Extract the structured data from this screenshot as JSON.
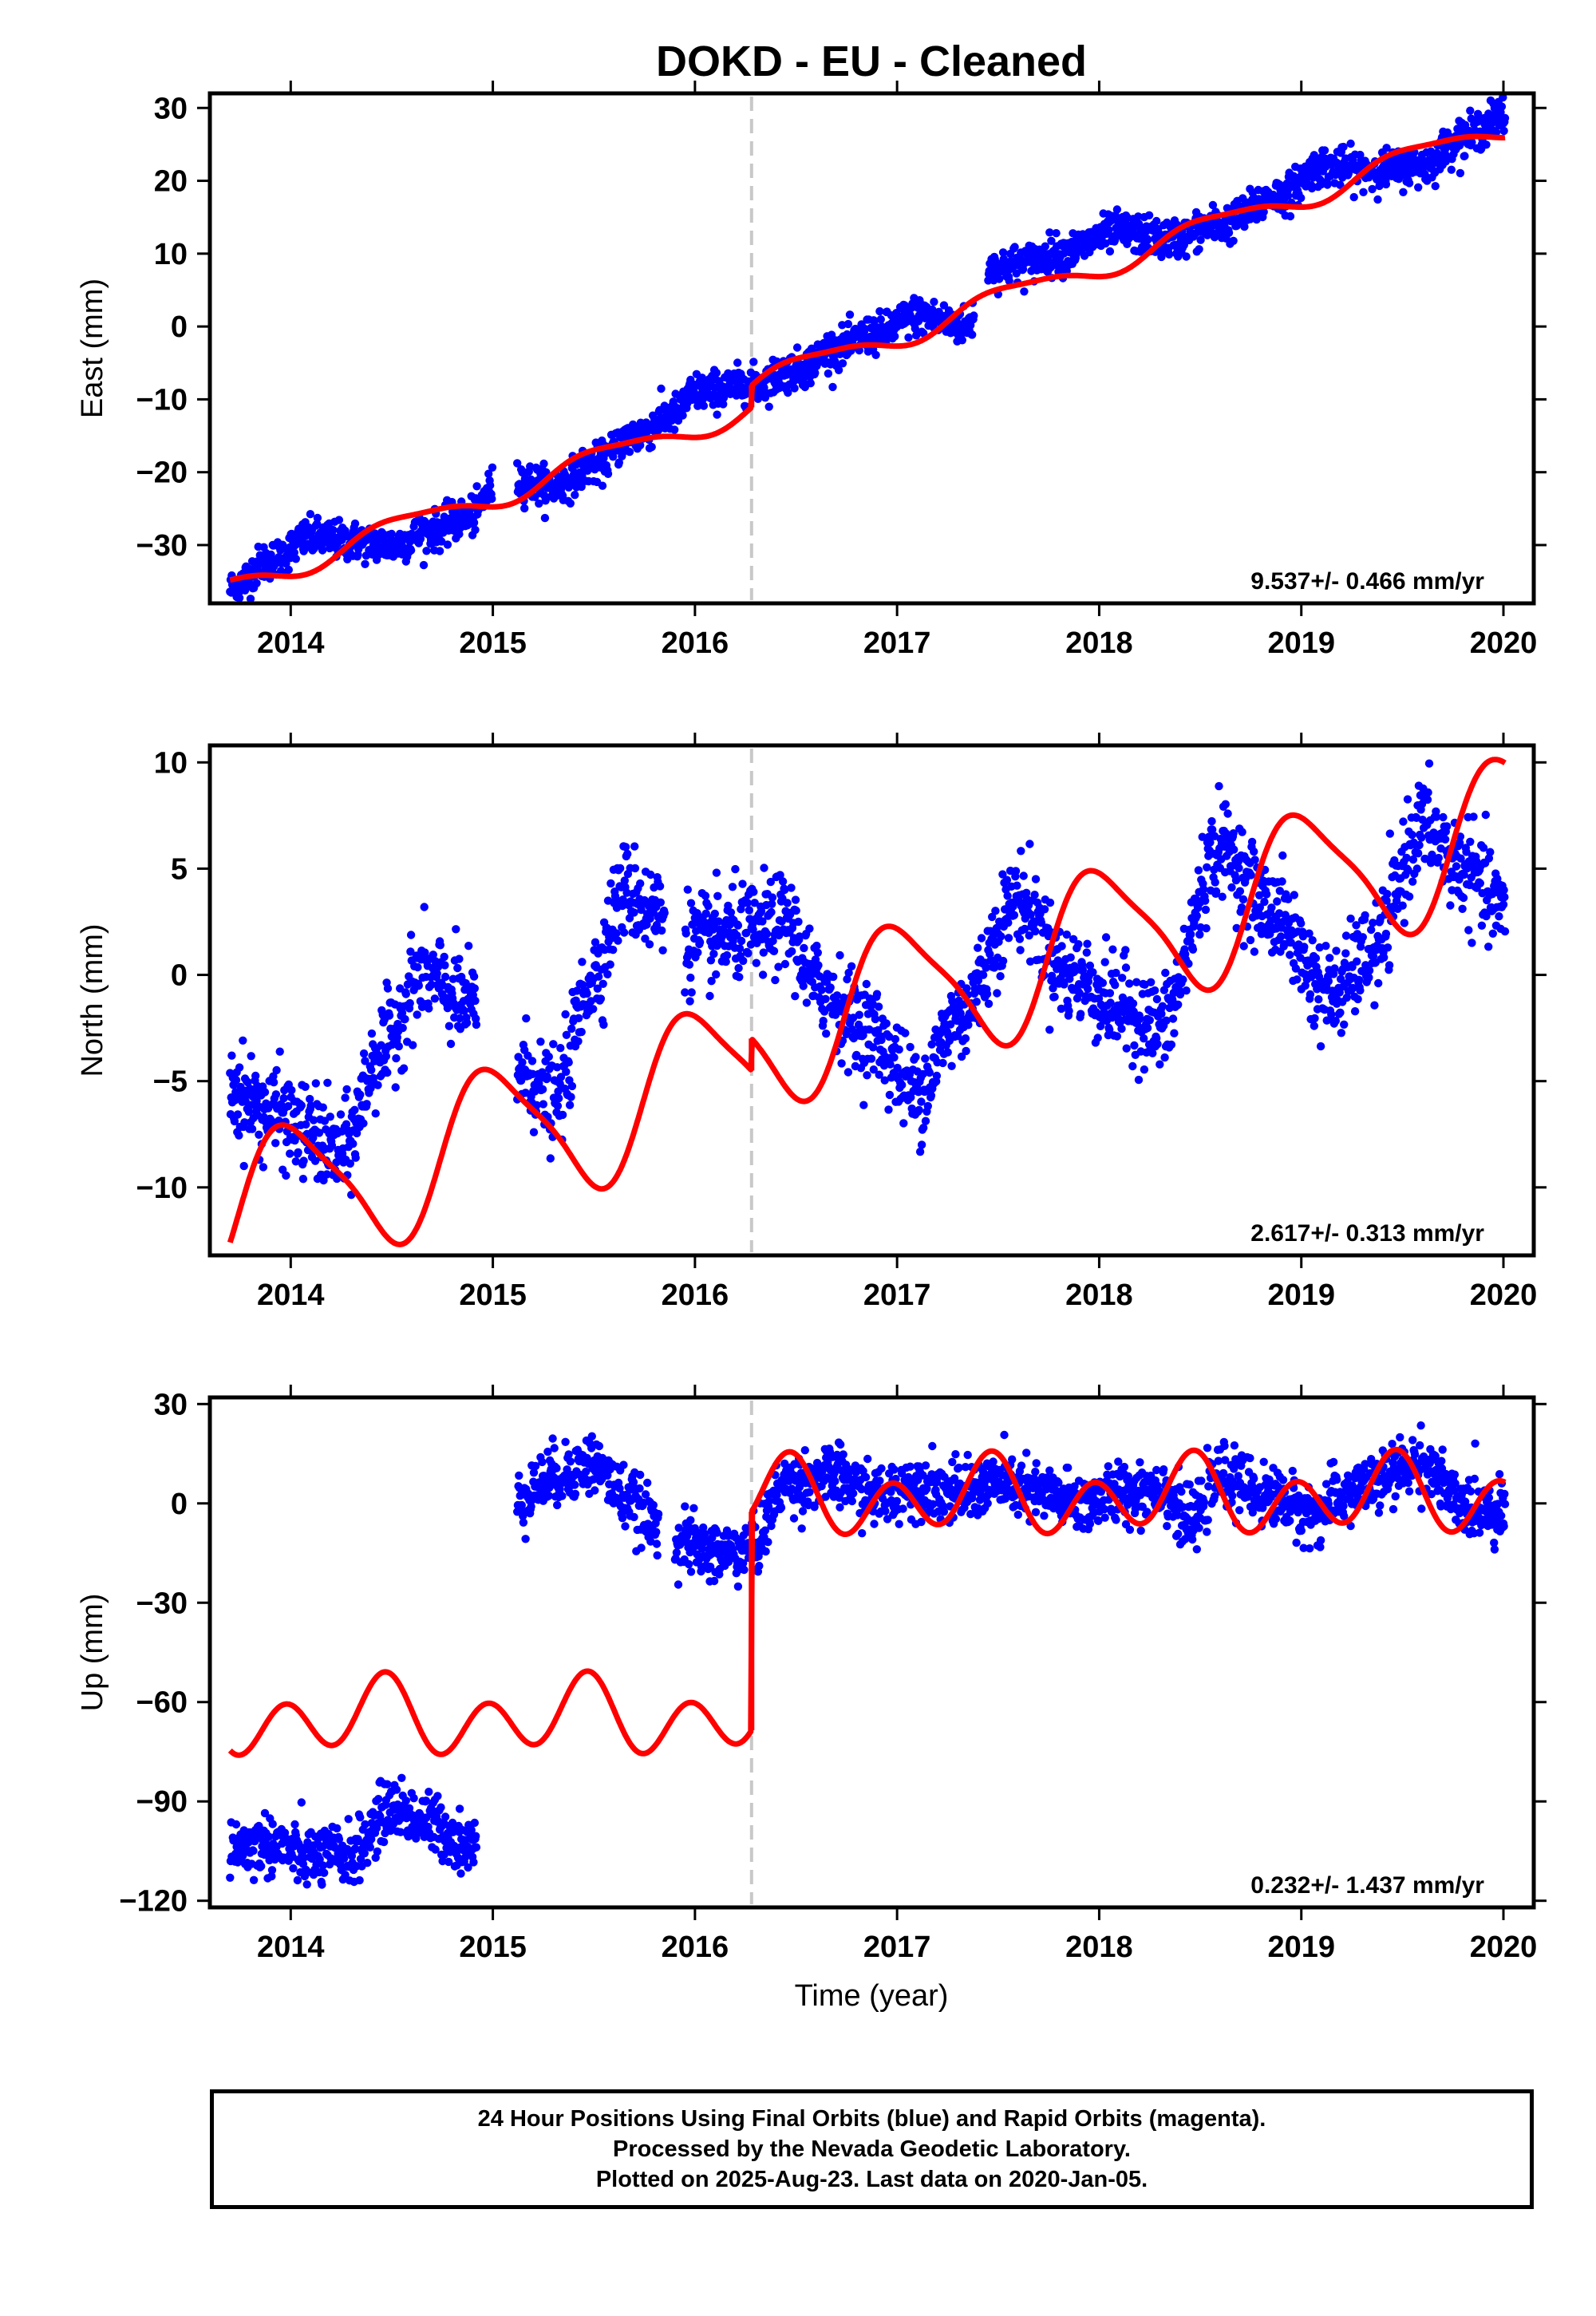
{
  "title": "DOKD  - EU - Cleaned",
  "xlabel": "Time (year)",
  "colors": {
    "final_orbits": "#0000ff",
    "model": "#ff0000",
    "break_line": "#c8c8c8",
    "axes": "#000000"
  },
  "chart_data": [
    {
      "type": "scatter",
      "panel": "east",
      "ylabel": "East (mm)",
      "xlim": [
        2013.6,
        2020.15
      ],
      "ylim": [
        -38,
        32
      ],
      "yticks": [
        -30,
        -20,
        -10,
        0,
        10,
        20,
        30
      ],
      "xticks": [
        2014,
        2015,
        2016,
        2017,
        2018,
        2019,
        2020
      ],
      "rate_label": "9.537+/- 0.466 mm/yr",
      "break_epoch": 2016.28,
      "obs_knots": {
        "x": [
          2013.7,
          2013.9,
          2014.1,
          2014.3,
          2014.5,
          2014.7,
          2014.9,
          2015.0,
          2015.1,
          2015.3,
          2015.5,
          2015.7,
          2015.9,
          2016.0,
          2016.28,
          2016.5,
          2016.7,
          2016.9,
          2017.1,
          2017.35,
          2017.45,
          2017.6,
          2017.8,
          2018.1,
          2018.35,
          2018.6,
          2018.9,
          2019.1,
          2019.35,
          2019.6,
          2019.8,
          2020.01
        ],
        "y": [
          -36,
          -32,
          -29,
          -29.5,
          -30,
          -28,
          -26,
          -22,
          -21,
          -22,
          -19,
          -15,
          -12,
          -9,
          -8,
          -6,
          -3,
          -1,
          1.5,
          0,
          8,
          8.5,
          10,
          13,
          12,
          14,
          18,
          22,
          21.5,
          22,
          26,
          29
        ]
      },
      "obs_scatter": 1.3,
      "obs_gaps": [
        [
          2015.0,
          2015.12
        ],
        [
          2017.38,
          2017.45
        ]
      ],
      "model": {
        "rate": 9.537,
        "ref_year": 2016.28,
        "offset_before": -11.0,
        "offset_after": -8.0,
        "annual_cos": -0.3,
        "annual_sin": 1.6,
        "semiannual_cos": 0.2,
        "semiannual_sin": 0.4
      }
    },
    {
      "type": "scatter",
      "panel": "north",
      "ylabel": "North (mm)",
      "xlim": [
        2013.6,
        2020.15
      ],
      "ylim": [
        -13.2,
        10.8
      ],
      "yticks": [
        -10,
        -5,
        0,
        5,
        10
      ],
      "xticks": [
        2014,
        2015,
        2016,
        2017,
        2018,
        2019,
        2020
      ],
      "rate_label": "2.617+/- 0.313 mm/yr",
      "break_epoch": 2016.28,
      "obs_knots": {
        "x": [
          2013.7,
          2013.9,
          2014.1,
          2014.25,
          2014.45,
          2014.65,
          2014.9,
          2015.15,
          2015.3,
          2015.5,
          2015.65,
          2015.8,
          2016.0,
          2016.28,
          2016.45,
          2016.6,
          2016.85,
          2017.1,
          2017.3,
          2017.6,
          2017.85,
          2018.1,
          2018.3,
          2018.6,
          2018.85,
          2019.15,
          2019.35,
          2019.6,
          2019.8,
          2020.01
        ],
        "y": [
          -5.5,
          -6.5,
          -7.5,
          -8.5,
          -3.5,
          0,
          -1.5,
          -4.5,
          -6,
          0,
          4,
          3,
          1.5,
          2,
          2.5,
          -0.5,
          -2.5,
          -5.5,
          -2,
          3.5,
          0,
          -1.5,
          -2.5,
          6,
          3,
          -1,
          1,
          7,
          5,
          3
        ]
      },
      "obs_scatter": 1.1,
      "obs_gaps": [
        [
          2014.92,
          2015.12
        ],
        [
          2015.85,
          2015.95
        ]
      ],
      "model": {
        "rate": 2.617,
        "ref_year": 2016.28,
        "offset_before": -4.4,
        "offset_after": -2.9,
        "annual_cos": -0.5,
        "annual_sin": -3.3,
        "semiannual_cos": 0.4,
        "semiannual_sin": 0.6
      }
    },
    {
      "type": "scatter",
      "panel": "up",
      "ylabel": "Up (mm)",
      "xlim": [
        2013.6,
        2020.15
      ],
      "ylim": [
        -122,
        32
      ],
      "yticks": [
        -120,
        -90,
        -60,
        -30,
        0,
        30
      ],
      "xticks": [
        2014,
        2015,
        2016,
        2017,
        2018,
        2019,
        2020
      ],
      "rate_label": "0.232+/- 1.437 mm/yr",
      "break_epoch": 2016.28,
      "obs_knots": {
        "x": [
          2013.7,
          2013.9,
          2014.1,
          2014.3,
          2014.5,
          2014.7,
          2014.9,
          2015.15,
          2015.3,
          2015.5,
          2015.65,
          2015.8,
          2015.95,
          2016.1,
          2016.28,
          2016.45,
          2016.7,
          2016.9,
          2017.1,
          2017.3,
          2017.5,
          2017.7,
          2017.9,
          2018.1,
          2018.3,
          2018.45,
          2018.6,
          2018.85,
          2019.05,
          2019.3,
          2019.6,
          2019.8,
          2020.01
        ],
        "y": [
          -104,
          -103,
          -107,
          -106,
          -92,
          -97,
          -104,
          3,
          8,
          12,
          2,
          -6,
          -12,
          -15,
          -14,
          6,
          8,
          2,
          6,
          3,
          6,
          3,
          0,
          3,
          5,
          -6,
          8,
          2,
          -3,
          5,
          12,
          -1,
          -2
        ]
      },
      "obs_scatter": 4.5,
      "obs_gaps": [
        [
          2014.92,
          2015.12
        ],
        [
          2015.82,
          2015.9
        ]
      ],
      "model": {
        "rate": 0.232,
        "ref_year": 2016.28,
        "offset_before": -64.5,
        "offset_after": 1.5,
        "annual_cos": 3.0,
        "annual_sin": 4.0,
        "semiannual_cos": -7.0,
        "semiannual_sin": 6.0
      }
    }
  ],
  "footer": {
    "line1": "24 Hour Positions Using Final Orbits (blue) and Rapid Orbits (magenta).",
    "line2": "Processed by the Nevada Geodetic Laboratory.",
    "line3": "Plotted on 2025-Aug-23. Last data on 2020-Jan-05."
  }
}
